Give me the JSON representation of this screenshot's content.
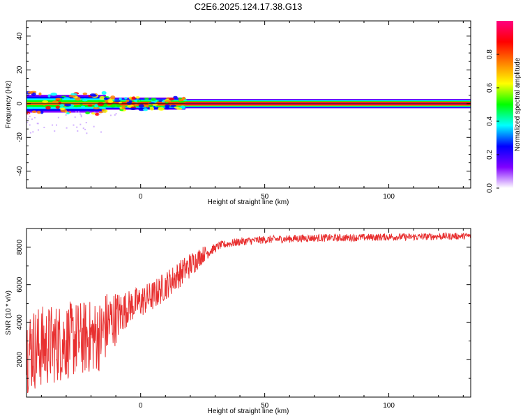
{
  "title": "C2E6.2025.124.17.38.G13",
  "chart_data": [
    {
      "type": "heatmap",
      "xlabel": "Height of straight line (km)",
      "ylabel": "Frequency (Hz)",
      "xlim": [
        -46,
        133
      ],
      "ylim": [
        -50,
        49
      ],
      "x_ticks": [
        0,
        50,
        100
      ],
      "x_tick_labels": [
        "0",
        "50",
        "100"
      ],
      "y_ticks": [
        -40,
        -20,
        0,
        20,
        40
      ],
      "y_tick_labels": [
        "-40",
        "-20",
        "0",
        "20",
        "40"
      ],
      "colorbar": {
        "label": "Normalized spectral amplitude",
        "range": [
          0,
          1
        ],
        "ticks": [
          0.0,
          0.2,
          0.4,
          0.6,
          0.8
        ],
        "tick_labels": [
          "0.0",
          "0.2",
          "0.4",
          "0.6",
          "0.8"
        ],
        "colors": [
          "#ffffff",
          "#8000ff",
          "#0000ff",
          "#00ffff",
          "#00ff00",
          "#ffff00",
          "#ff8000",
          "#ff0000",
          "#ff0080"
        ]
      },
      "spectral_line": {
        "description": "dominant frequency near 0 Hz",
        "center_frequency": 0,
        "segments": [
          {
            "x": [
              -46,
              -14
            ],
            "halfwidth": 6,
            "peak": 0.7
          },
          {
            "x": [
              -14,
              18
            ],
            "halfwidth": 4,
            "peak": 0.85
          },
          {
            "x": [
              18,
              133
            ],
            "halfwidth": 3,
            "peak": 1.0
          }
        ]
      }
    },
    {
      "type": "line",
      "xlabel": "Height of straight line (km)",
      "ylabel": "SNR (10 * v/v)",
      "xlim": [
        -46,
        133
      ],
      "ylim": [
        0,
        9000
      ],
      "x_ticks": [
        0,
        50,
        100
      ],
      "x_tick_labels": [
        "0",
        "50",
        "100"
      ],
      "y_ticks": [
        2000,
        4000,
        6000,
        8000
      ],
      "y_tick_labels": [
        "2000",
        "4000",
        "6000",
        "8000"
      ],
      "color": "#e83030",
      "trend": {
        "x": [
          -46,
          -30,
          -16,
          -14,
          -5,
          5,
          15,
          25,
          32,
          40,
          50,
          60,
          70,
          80,
          90,
          100,
          110,
          120,
          133
        ],
        "y": [
          2500,
          3000,
          3300,
          3800,
          4800,
          5400,
          6500,
          7600,
          8100,
          8300,
          8400,
          8450,
          8500,
          8500,
          8520,
          8550,
          8550,
          8580,
          8600
        ]
      },
      "noise": {
        "x": [
          -46,
          -14,
          -5,
          20,
          30,
          133
        ],
        "amplitude": [
          2300,
          1900,
          900,
          700,
          220,
          180
        ]
      }
    }
  ]
}
